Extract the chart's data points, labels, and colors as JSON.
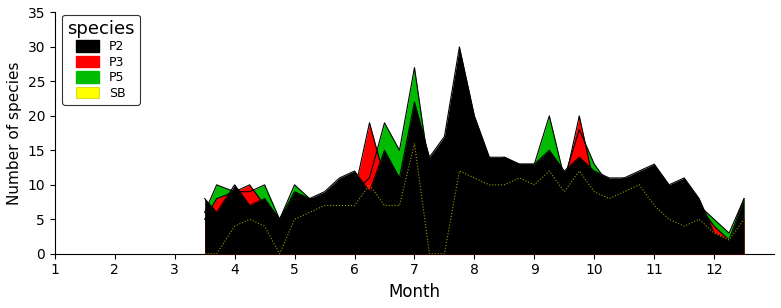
{
  "title": "species",
  "xlabel": "Month",
  "ylabel": "Number of species",
  "xlim": [
    1,
    13
  ],
  "ylim": [
    0,
    35
  ],
  "xticks": [
    1,
    2,
    3,
    4,
    5,
    6,
    7,
    8,
    9,
    10,
    11,
    12
  ],
  "yticks": [
    0,
    5,
    10,
    15,
    20,
    25,
    30,
    35
  ],
  "x": [
    3.5,
    3.7,
    4.0,
    4.25,
    4.5,
    4.75,
    5.0,
    5.25,
    5.5,
    5.75,
    6.0,
    6.25,
    6.5,
    6.75,
    7.0,
    7.25,
    7.5,
    7.75,
    8.0,
    8.25,
    8.5,
    8.75,
    9.0,
    9.25,
    9.5,
    9.75,
    10.0,
    10.25,
    10.5,
    10.75,
    11.0,
    11.25,
    11.5,
    11.75,
    12.0,
    12.25,
    12.5
  ],
  "P2": [
    8,
    6,
    10,
    7,
    8,
    5,
    9,
    8,
    9,
    11,
    12,
    9,
    15,
    11,
    22,
    14,
    17,
    30,
    20,
    14,
    14,
    13,
    13,
    15,
    12,
    14,
    12,
    11,
    11,
    12,
    13,
    10,
    11,
    8,
    3,
    2,
    8
  ],
  "P3": [
    5,
    8,
    9,
    10,
    7,
    5,
    8,
    5,
    6,
    8,
    9,
    19,
    11,
    10,
    12,
    10,
    7,
    19,
    18,
    12,
    11,
    11,
    10,
    13,
    10,
    20,
    10,
    10,
    11,
    10,
    9,
    6,
    6,
    7,
    4,
    2,
    5
  ],
  "P5": [
    6,
    10,
    9,
    9,
    10,
    5,
    10,
    8,
    8,
    10,
    9,
    11,
    19,
    15,
    27,
    12,
    10,
    18,
    18,
    13,
    14,
    13,
    13,
    20,
    11,
    18,
    13,
    10,
    10,
    11,
    11,
    7,
    8,
    7,
    5,
    3,
    8
  ],
  "SB": [
    0,
    0,
    4,
    5,
    4,
    0,
    5,
    6,
    7,
    7,
    7,
    10,
    7,
    7,
    16,
    0,
    0,
    12,
    11,
    10,
    10,
    11,
    10,
    12,
    9,
    12,
    9,
    8,
    9,
    10,
    7,
    5,
    4,
    5,
    3,
    2,
    5
  ],
  "color_P2": "#000000",
  "color_P3": "#ff0000",
  "color_P5": "#00bb00",
  "color_SB": "#ffff00",
  "line_SB": "#999900",
  "legend_label": "species",
  "background_color": "#ffffff"
}
